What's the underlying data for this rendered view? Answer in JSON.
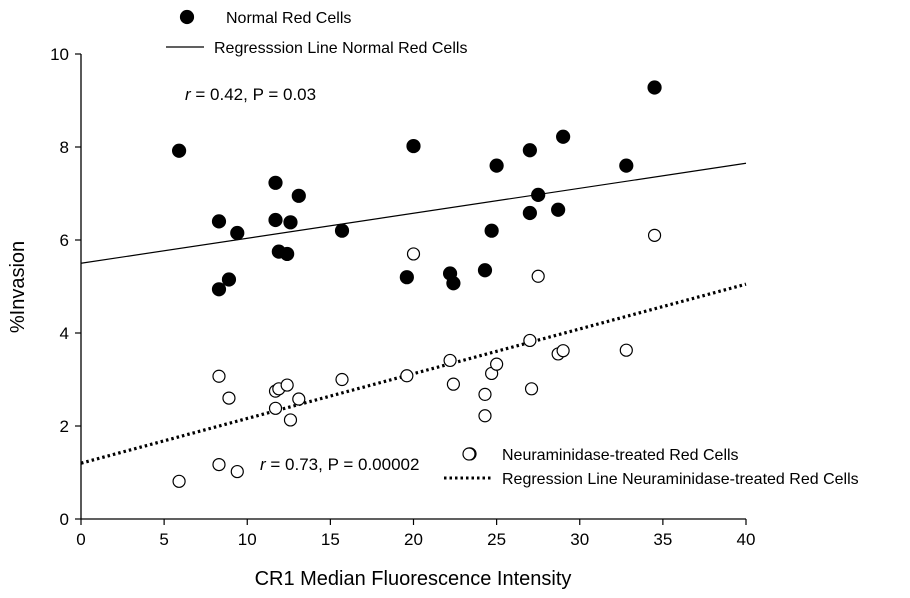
{
  "chart_data": {
    "type": "scatter",
    "title": "",
    "xlabel": "CR1 Median Fluorescence Intensity",
    "ylabel": "%Invasion",
    "xlim": [
      0,
      40
    ],
    "ylim": [
      0,
      10
    ],
    "x_ticks": [
      "0",
      "5",
      "10",
      "15",
      "20",
      "25",
      "30",
      "35",
      "40"
    ],
    "y_ticks": [
      "0",
      "2",
      "4",
      "6",
      "8",
      "10"
    ],
    "grid": false,
    "series": [
      {
        "name": "Normal Red Cells",
        "marker": "filled-circle",
        "color": "#000000",
        "points": [
          [
            5.9,
            7.92
          ],
          [
            8.3,
            6.4
          ],
          [
            8.3,
            4.94
          ],
          [
            8.9,
            5.15
          ],
          [
            9.4,
            6.15
          ],
          [
            11.7,
            7.23
          ],
          [
            11.7,
            6.43
          ],
          [
            11.9,
            5.75
          ],
          [
            12.4,
            5.7
          ],
          [
            12.6,
            6.38
          ],
          [
            13.1,
            6.95
          ],
          [
            15.7,
            6.2
          ],
          [
            19.6,
            5.2
          ],
          [
            20.0,
            8.02
          ],
          [
            22.2,
            5.28
          ],
          [
            22.4,
            5.07
          ],
          [
            24.3,
            5.35
          ],
          [
            24.7,
            6.2
          ],
          [
            25.0,
            7.6
          ],
          [
            27.0,
            7.93
          ],
          [
            27.0,
            6.58
          ],
          [
            27.5,
            6.97
          ],
          [
            28.7,
            6.65
          ],
          [
            29.0,
            8.22
          ],
          [
            32.8,
            7.6
          ],
          [
            34.5,
            9.28
          ]
        ]
      },
      {
        "name": "Neuraminidase-treated Red Cells",
        "marker": "open-circle",
        "color": "#000000",
        "points": [
          [
            5.9,
            0.81
          ],
          [
            8.3,
            3.07
          ],
          [
            8.3,
            1.17
          ],
          [
            8.9,
            2.6
          ],
          [
            9.4,
            1.02
          ],
          [
            11.7,
            2.38
          ],
          [
            11.7,
            2.75
          ],
          [
            11.9,
            2.8
          ],
          [
            12.4,
            2.88
          ],
          [
            12.6,
            2.13
          ],
          [
            13.1,
            2.58
          ],
          [
            15.7,
            3.0
          ],
          [
            19.6,
            3.08
          ],
          [
            20.0,
            5.7
          ],
          [
            22.2,
            3.41
          ],
          [
            22.4,
            2.9
          ],
          [
            24.3,
            2.68
          ],
          [
            24.3,
            2.22
          ],
          [
            24.7,
            3.13
          ],
          [
            25.0,
            3.33
          ],
          [
            27.0,
            3.84
          ],
          [
            27.1,
            2.8
          ],
          [
            27.5,
            5.22
          ],
          [
            28.7,
            3.55
          ],
          [
            29.0,
            3.62
          ],
          [
            32.8,
            3.63
          ],
          [
            34.5,
            6.1
          ],
          [
            23.4,
            1.4
          ]
        ]
      },
      {
        "name": "Regresssion Line Normal Red Cells",
        "type": "line",
        "style": "solid",
        "color": "#000000",
        "x": [
          0,
          40
        ],
        "values": [
          5.5,
          7.65
        ]
      },
      {
        "name": "Regression Line Neuraminidase-treated Red Cells",
        "type": "line",
        "style": "dotted",
        "color": "#000000",
        "x": [
          0,
          40
        ],
        "values": [
          1.2,
          5.05
        ]
      }
    ],
    "annotations": {
      "normal": {
        "r_symbol": "r",
        "rest": " = 0.42, P = 0.03"
      },
      "neuraminidase": {
        "r_symbol": "r",
        "rest": " = 0.73, P = 0.00002"
      }
    },
    "legend": {
      "top_placement": "top-left",
      "bottom_placement": "bottom-right",
      "normal_label": "Normal Red Cells",
      "normal_line_label": "Regresssion Line Normal Red Cells",
      "neura_label": "Neuraminidase-treated Red Cells",
      "neura_line_label": "Regression Line Neuraminidase-treated Red Cells"
    }
  }
}
